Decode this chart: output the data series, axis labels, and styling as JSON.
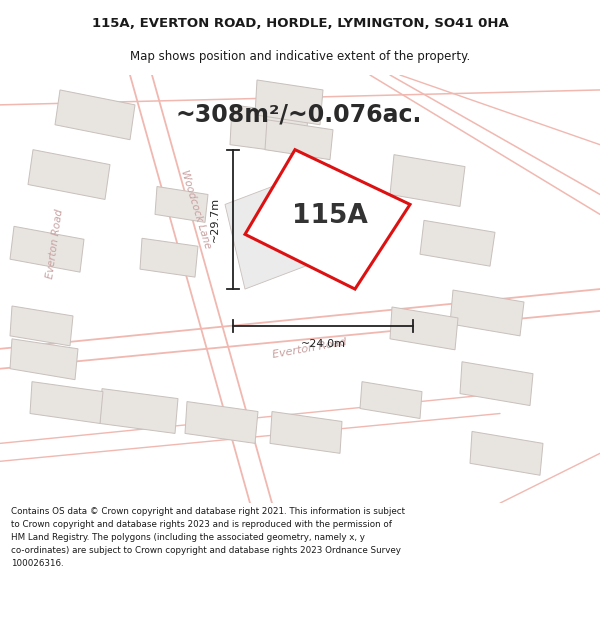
{
  "title": "115A, EVERTON ROAD, HORDLE, LYMINGTON, SO41 0HA",
  "subtitle": "Map shows position and indicative extent of the property.",
  "area_text": "~308m²/~0.076ac.",
  "label_115a": "115A",
  "dim_height": "~29.7m",
  "dim_width": "~24.0m",
  "footer": "Contains OS data © Crown copyright and database right 2021. This information is subject\nto Crown copyright and database rights 2023 and is reproduced with the permission of\nHM Land Registry. The polygons (including the associated geometry, namely x, y\nco-ordinates) are subject to Crown copyright and database rights 2023 Ordnance Survey\n100026316.",
  "map_bg": "#ffffff",
  "road_color": "#f0b8b0",
  "bldg_fill": "#e8e4e0",
  "bldg_edge": "#c8c0bc",
  "property_edge": "#dd1111",
  "text_dark": "#1a1a1a",
  "dim_color": "#222222",
  "road_text_color": "#c8a0a0"
}
